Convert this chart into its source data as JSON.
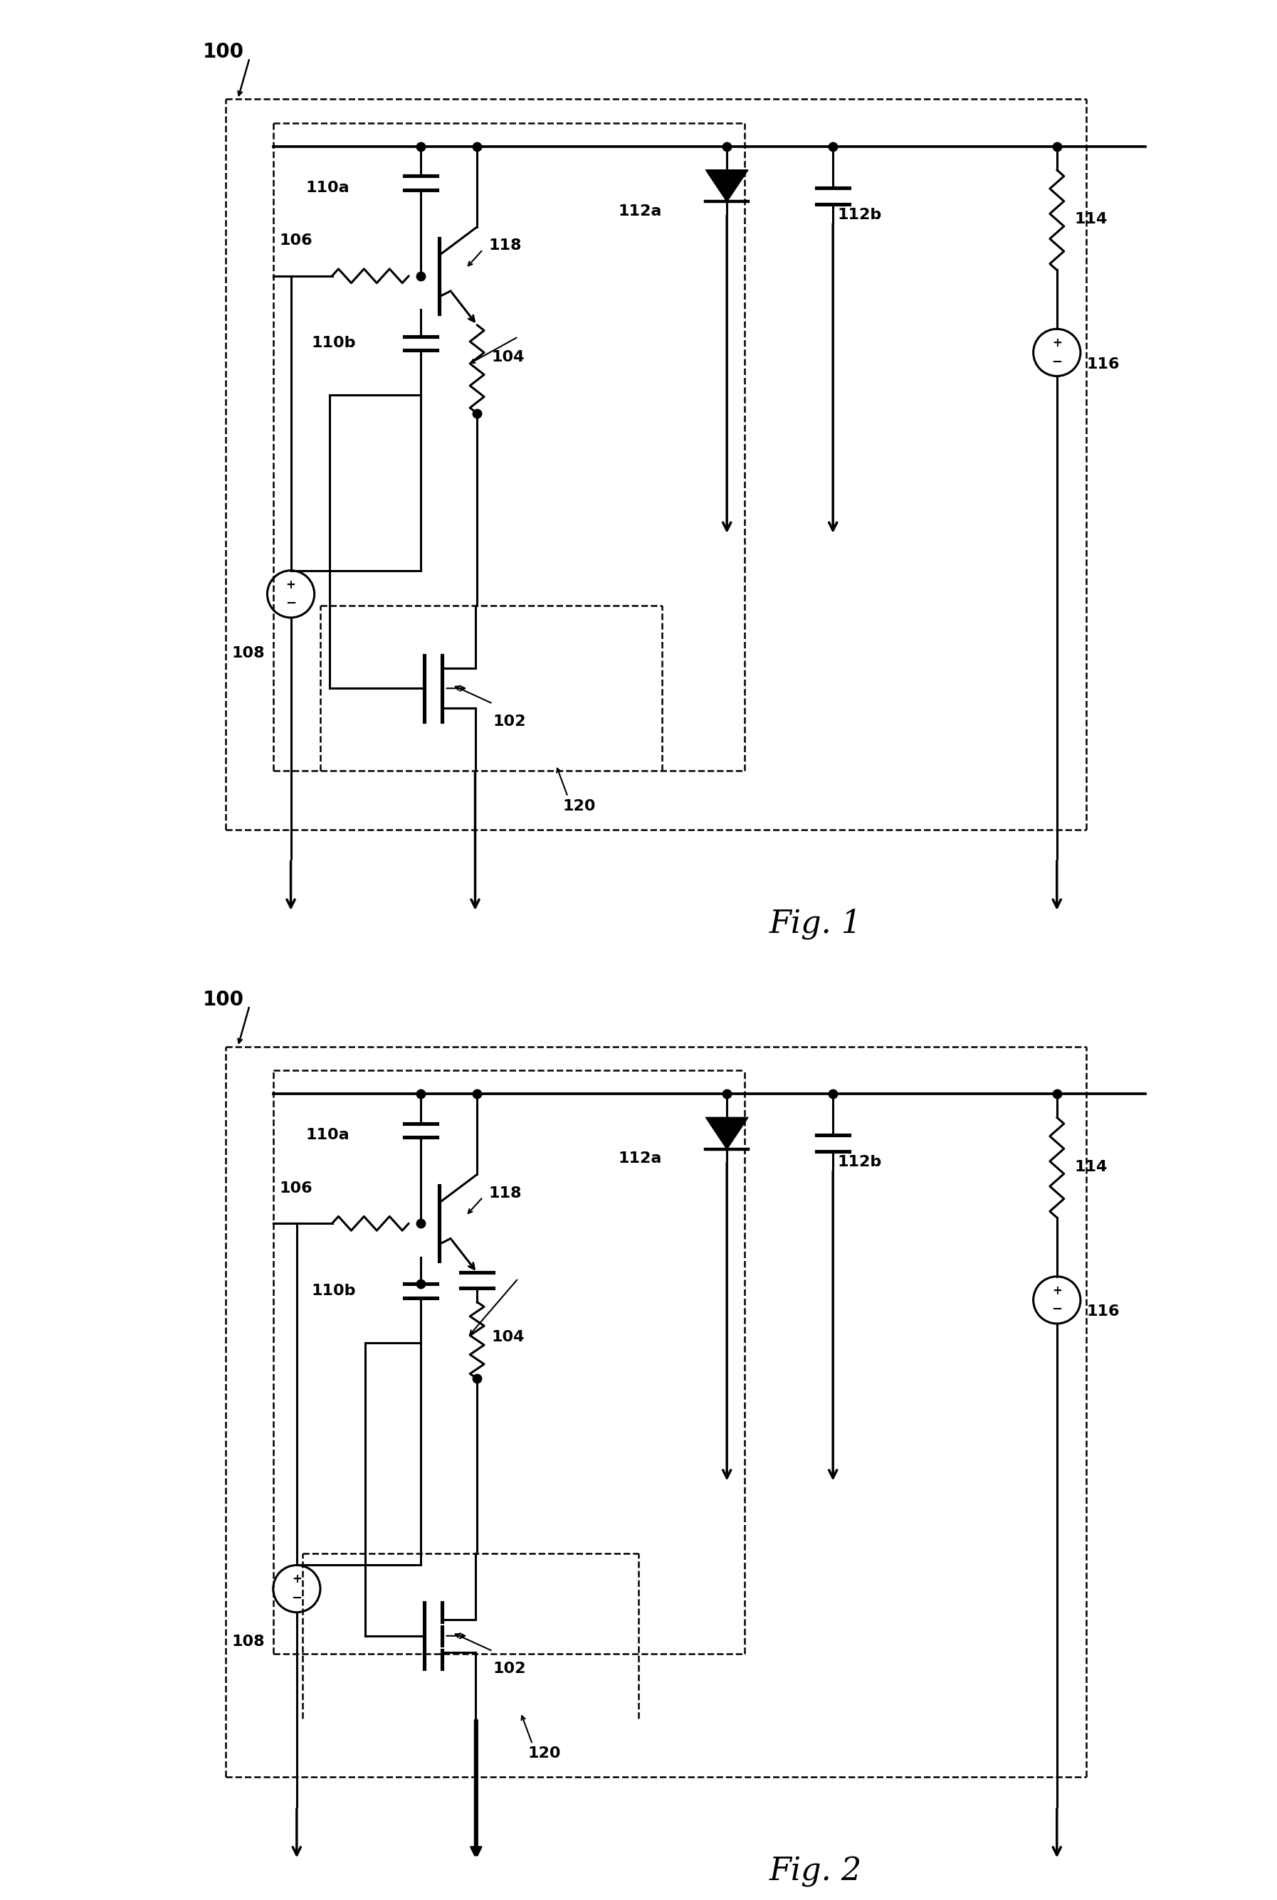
{
  "fig_width": 17.94,
  "fig_height": 26.7,
  "bg_color": "#ffffff",
  "line_color": "#000000",
  "lw": 2.2,
  "lw_thin": 1.8,
  "dot_size": 8,
  "fig1_label": "Fig. 1",
  "fig2_label": "Fig. 2",
  "labels": {
    "100": "100",
    "102": "102",
    "104": "104",
    "106": "106",
    "108": "108",
    "110a": "110a",
    "110b": "110b",
    "112a": "112a",
    "112b": "112b",
    "114": "114",
    "116": "116",
    "118": "118",
    "120": "120"
  },
  "font_size_label": 18,
  "font_size_fig": 32
}
